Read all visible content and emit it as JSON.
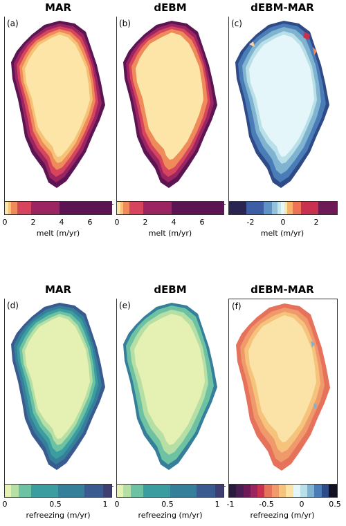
{
  "top_row": {
    "panels": [
      {
        "title": "MAR",
        "tag": "(a)"
      },
      {
        "title": "dEBM",
        "tag": "(b)"
      },
      {
        "title": "dEBM-MAR",
        "tag": "(c)"
      }
    ],
    "colorbars": [
      {
        "label": "melt (m/yr)",
        "ticks": [
          "0",
          "2",
          "4",
          "6"
        ]
      },
      {
        "label": "melt (m/yr)",
        "ticks": [
          "0",
          "2",
          "4",
          "6"
        ]
      },
      {
        "label": "melt (m/yr)",
        "ticks": [
          "-2",
          "0",
          "2"
        ]
      }
    ]
  },
  "bottom_row": {
    "panels": [
      {
        "title": "MAR",
        "tag": "(d)"
      },
      {
        "title": "dEBM",
        "tag": "(e)"
      },
      {
        "title": "dEBM-MAR",
        "tag": "(f)"
      }
    ],
    "colorbars": [
      {
        "label": "refreezing (m/yr)",
        "ticks": [
          "0",
          "0.5",
          "1"
        ]
      },
      {
        "label": "refreezing (m/yr)",
        "ticks": [
          "0",
          "0.5",
          "1"
        ]
      },
      {
        "label": "refreezing (m/yr)",
        "ticks": [
          "-1",
          "-0.5",
          "0",
          "0.5"
        ]
      }
    ]
  },
  "colors": {
    "melt_interior": "#fce5a6",
    "melt_edge": [
      "#f6c277",
      "#ef8a5a",
      "#d6455d",
      "#9b2560",
      "#5c1552"
    ],
    "diff_interior": "#e4f6fa",
    "diff_neg": [
      "#b9e0e8",
      "#7fb3cf",
      "#4a7db7",
      "#2e4a87"
    ],
    "diff_pos": [
      "#f8d59a",
      "#ef8a5a",
      "#c8324f"
    ],
    "refr_interior": "#e5f1b2",
    "refr_edge": [
      "#b6dfa6",
      "#6cc2a2",
      "#3c9da0",
      "#357f9a",
      "#3a5b8f"
    ],
    "refdiff_interior": "#fbe2a6",
    "refdiff_edge": [
      "#f6c37c",
      "#f0996b",
      "#e7725c"
    ]
  }
}
